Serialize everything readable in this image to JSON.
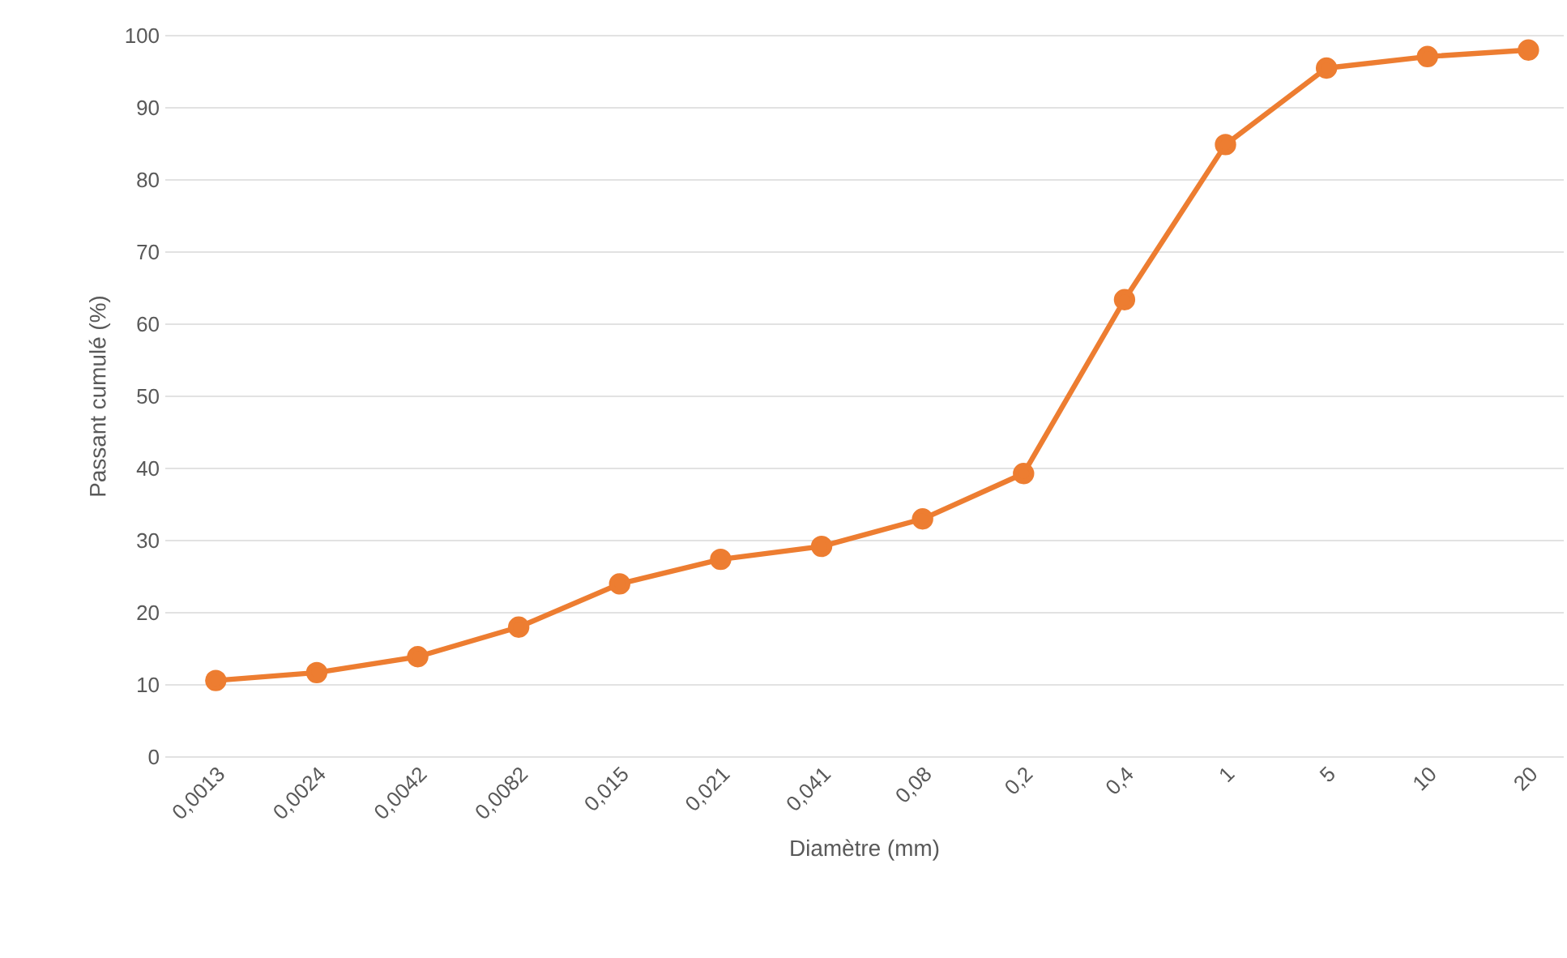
{
  "chart_data": {
    "type": "line",
    "xlabel": "Diamètre (mm)",
    "ylabel": "Passant cumulé (%)",
    "categories": [
      "0,0013",
      "0,0024",
      "0,0042",
      "0,0082",
      "0,015",
      "0,021",
      "0,041",
      "0,08",
      "0,2",
      "0,4",
      "1",
      "5",
      "10",
      "20"
    ],
    "values": [
      10.6,
      11.7,
      13.9,
      18.0,
      24.0,
      27.4,
      29.2,
      33.0,
      39.3,
      63.4,
      84.9,
      95.5,
      97.1,
      98.0
    ],
    "color": "#ed7d31",
    "ylim": [
      0,
      100
    ],
    "yticks": [
      0,
      10,
      20,
      30,
      40,
      50,
      60,
      70,
      80,
      90,
      100
    ],
    "grid": "y",
    "marker": "circle",
    "line_style": "solid"
  }
}
